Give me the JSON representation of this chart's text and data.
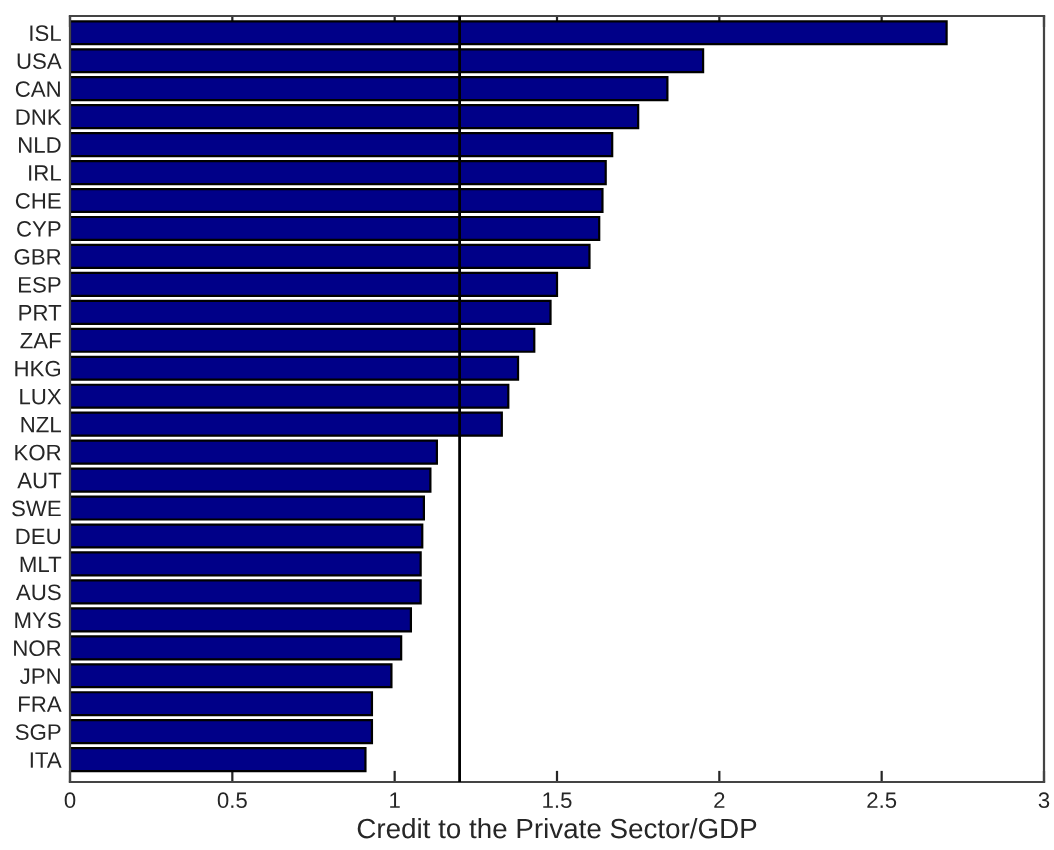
{
  "chart_data": {
    "type": "bar",
    "orientation": "horizontal",
    "xlabel": "Credit to the Private Sector/GDP",
    "categories": [
      "ISL",
      "USA",
      "CAN",
      "DNK",
      "NLD",
      "IRL",
      "CHE",
      "CYP",
      "GBR",
      "ESP",
      "PRT",
      "ZAF",
      "HKG",
      "LUX",
      "NZL",
      "KOR",
      "AUT",
      "SWE",
      "DEU",
      "MLT",
      "AUS",
      "MYS",
      "NOR",
      "JPN",
      "FRA",
      "SGP",
      "ITA"
    ],
    "values": [
      2.7,
      1.95,
      1.84,
      1.75,
      1.67,
      1.65,
      1.64,
      1.63,
      1.6,
      1.5,
      1.48,
      1.43,
      1.38,
      1.35,
      1.33,
      1.13,
      1.11,
      1.09,
      1.085,
      1.08,
      1.08,
      1.05,
      1.02,
      0.99,
      0.93,
      0.93,
      0.91
    ],
    "color": "#000088",
    "xlim": [
      0,
      3
    ],
    "xticks": [
      0,
      0.5,
      1,
      1.5,
      2,
      2.5,
      3
    ],
    "ref_lines": [
      {
        "axis": "x",
        "value": 1.2,
        "color": "#000000"
      }
    ],
    "grid": false
  }
}
